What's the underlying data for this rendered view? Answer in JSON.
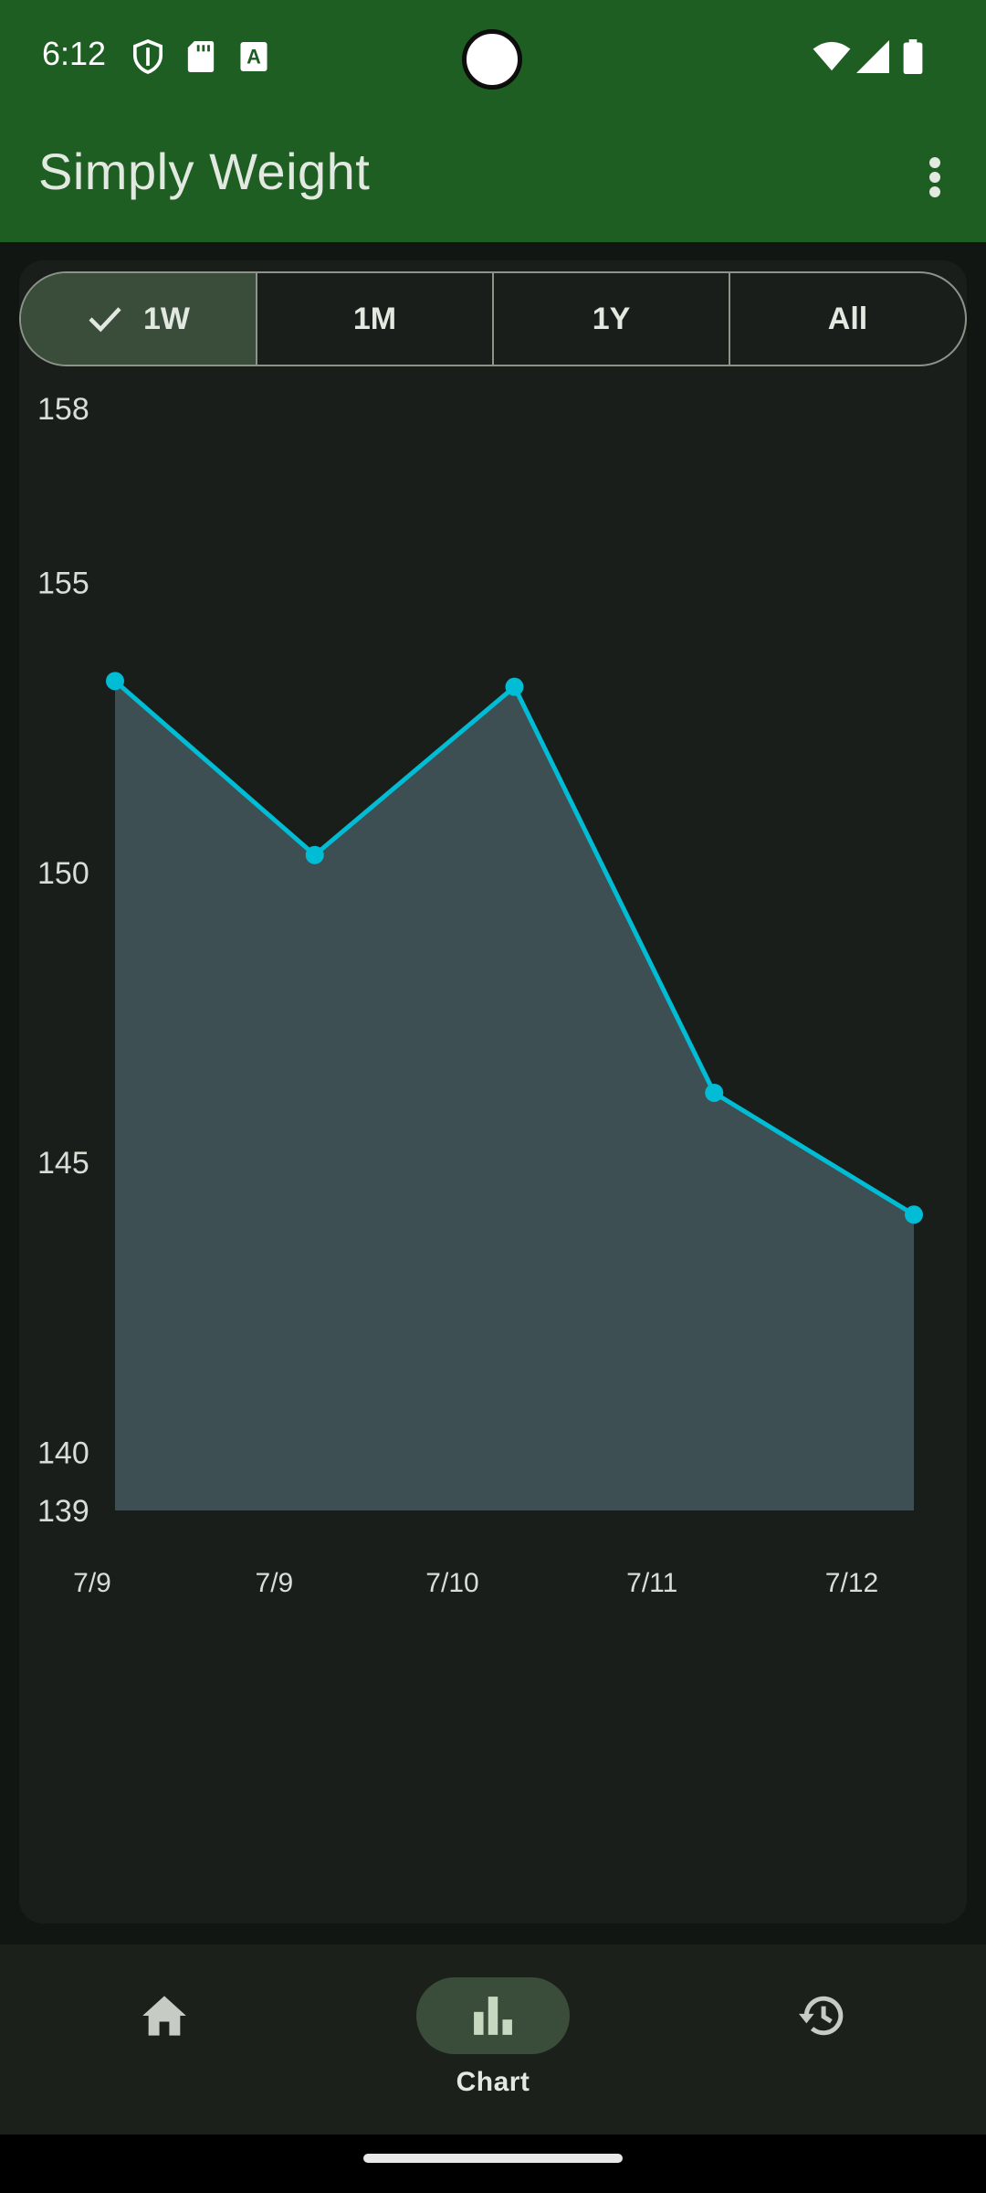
{
  "status_bar": {
    "time": "6:12",
    "left_icons": [
      "shield-icon",
      "sd-card-icon",
      "keyboard-a-icon"
    ],
    "right_icons": [
      "wifi-icon",
      "signal-icon",
      "battery-icon"
    ]
  },
  "app_bar": {
    "title": "Simply Weight",
    "overflow_icon": "more-vert-icon"
  },
  "range_selector": {
    "options": [
      {
        "label": "1W",
        "selected": true
      },
      {
        "label": "1M",
        "selected": false
      },
      {
        "label": "1Y",
        "selected": false
      },
      {
        "label": "All",
        "selected": false
      }
    ]
  },
  "colors": {
    "app_bar": "#1e5e22",
    "line": "#00bcd4",
    "area_fill": "#3d4f53",
    "segment_selected": "#3a4d3a"
  },
  "chart_data": {
    "type": "area",
    "title": "",
    "xlabel": "",
    "ylabel": "",
    "y_ticks": [
      158,
      155,
      150,
      145,
      140,
      139
    ],
    "x_ticks": [
      "7/9",
      "7/9",
      "7/10",
      "7/11",
      "7/12"
    ],
    "ylim": [
      139,
      158
    ],
    "series": [
      {
        "points": [
          {
            "x": 0,
            "y": 153.3
          },
          {
            "x": 1,
            "y": 150.3
          },
          {
            "x": 2,
            "y": 153.2
          },
          {
            "x": 3,
            "y": 146.2
          },
          {
            "x": 4,
            "y": 144.1
          }
        ]
      }
    ],
    "grid": false
  },
  "bottom_nav": {
    "items": [
      {
        "key": "home",
        "label": "",
        "icon": "home-icon",
        "active": false
      },
      {
        "key": "chart",
        "label": "Chart",
        "icon": "bar-chart-icon",
        "active": true
      },
      {
        "key": "history",
        "label": "",
        "icon": "history-icon",
        "active": false
      }
    ]
  }
}
